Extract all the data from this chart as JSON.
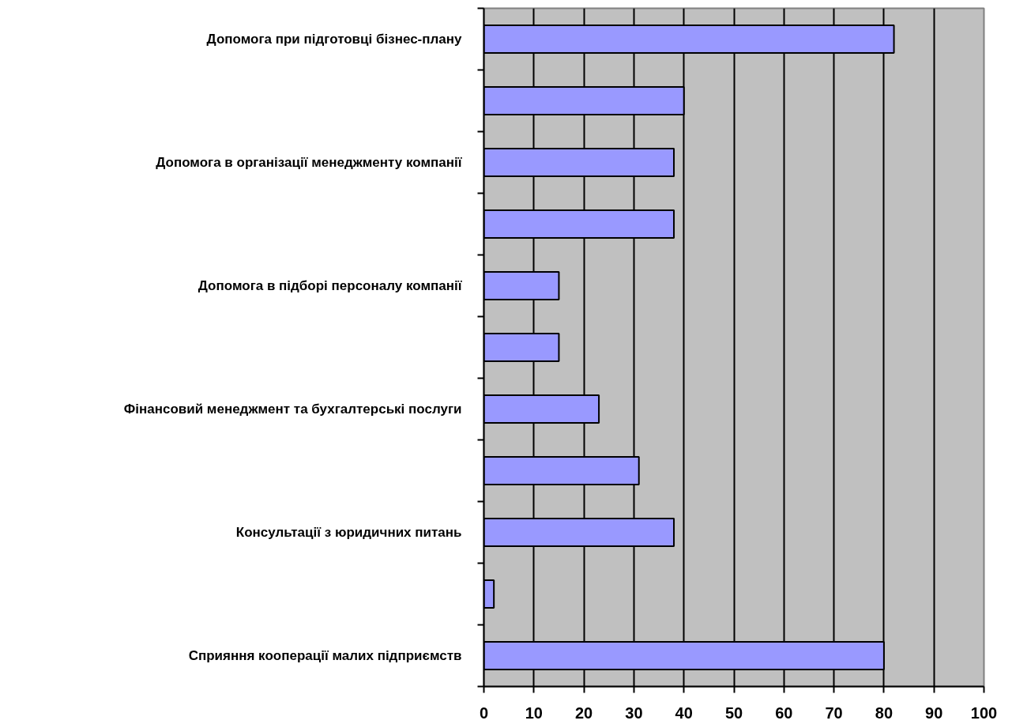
{
  "chart_data": {
    "type": "bar",
    "orientation": "horizontal",
    "categories": [
      "Допомога при підготовці бізнес-плану",
      null,
      "Допомога в організації менеджменту компанії",
      null,
      "Допомога в підборі персоналу компанії",
      null,
      "Фінансовий менеджмент та бухгалтерські послуги",
      null,
      "Консультації з юридичних питань",
      null,
      "Сприяння кооперації малих підприємств"
    ],
    "values": [
      82,
      40,
      38,
      38,
      15,
      15,
      23,
      31,
      38,
      2,
      80
    ],
    "color": "#9999ff",
    "xlim": [
      0,
      100
    ],
    "xticks": [
      0,
      10,
      20,
      30,
      40,
      50,
      60,
      70,
      80,
      90,
      100
    ],
    "grid": "x"
  }
}
